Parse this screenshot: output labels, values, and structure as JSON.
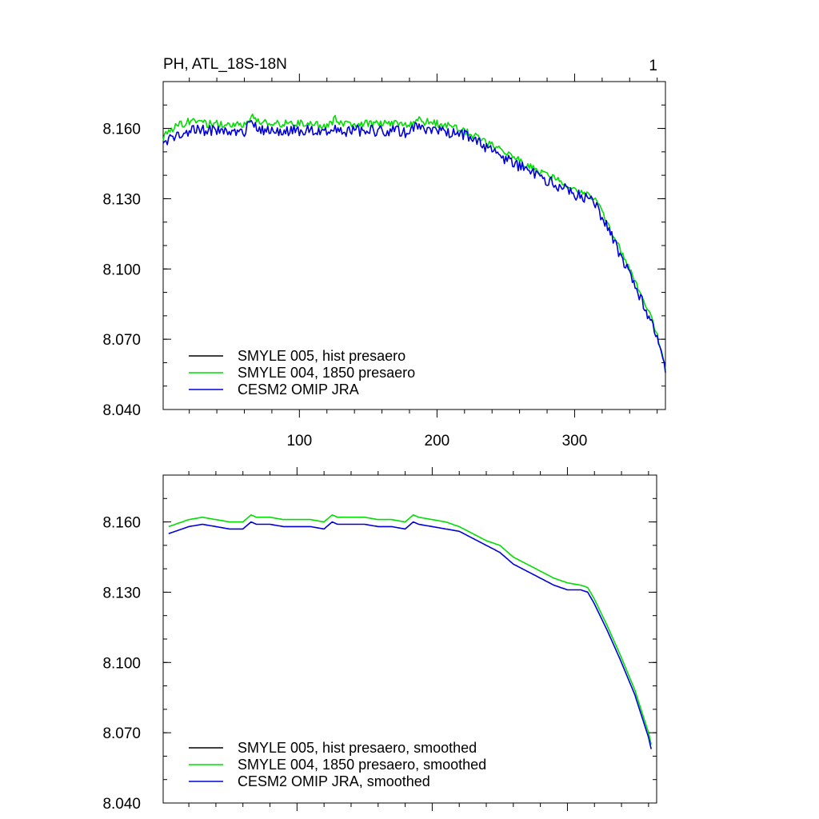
{
  "chart_data": [
    {
      "type": "line",
      "title_left": "PH, ATL_18S-18N",
      "title_right": "1",
      "xlim": [
        1,
        366
      ],
      "ylim": [
        8.04,
        8.18
      ],
      "xticks": [
        100,
        200,
        300
      ],
      "yticks": [
        8.04,
        8.07,
        8.1,
        8.13,
        8.16
      ],
      "ytick_labels": [
        "8.040",
        "8.070",
        "8.100",
        "8.130",
        "8.160"
      ],
      "xtick_labels": [
        "100",
        "200",
        "300"
      ],
      "legend_position": "bottom-left",
      "series": [
        {
          "name": "SMYLE 005, hist presaero",
          "color": "#000000",
          "hidden_under": "SMYLE 004, 1850 presaero"
        },
        {
          "name": "SMYLE 004, 1850 presaero",
          "color": "#00dd00",
          "x": [
            1,
            10,
            20,
            30,
            40,
            50,
            60,
            66,
            70,
            80,
            90,
            100,
            110,
            120,
            126,
            130,
            140,
            150,
            160,
            170,
            180,
            186,
            190,
            200,
            210,
            220,
            230,
            240,
            250,
            260,
            270,
            280,
            290,
            300,
            310,
            315,
            320,
            330,
            340,
            350,
            360,
            366
          ],
          "values": [
            8.156,
            8.161,
            8.163,
            8.162,
            8.162,
            8.162,
            8.162,
            8.165,
            8.163,
            8.162,
            8.162,
            8.162,
            8.162,
            8.161,
            8.164,
            8.162,
            8.162,
            8.162,
            8.162,
            8.162,
            8.161,
            8.165,
            8.163,
            8.162,
            8.161,
            8.159,
            8.156,
            8.153,
            8.15,
            8.146,
            8.143,
            8.14,
            8.137,
            8.134,
            8.132,
            8.13,
            8.124,
            8.112,
            8.1,
            8.087,
            8.072,
            8.057
          ]
        },
        {
          "name": "CESM2 OMIP JRA",
          "color": "#0000dd",
          "x": [
            1,
            10,
            20,
            30,
            40,
            50,
            60,
            66,
            70,
            80,
            90,
            100,
            110,
            120,
            126,
            130,
            140,
            150,
            160,
            170,
            180,
            186,
            190,
            200,
            210,
            220,
            230,
            240,
            250,
            260,
            270,
            280,
            290,
            300,
            310,
            315,
            320,
            330,
            340,
            350,
            360,
            366
          ],
          "values": [
            8.153,
            8.157,
            8.159,
            8.159,
            8.159,
            8.159,
            8.159,
            8.162,
            8.16,
            8.159,
            8.159,
            8.159,
            8.159,
            8.158,
            8.161,
            8.159,
            8.159,
            8.159,
            8.159,
            8.159,
            8.158,
            8.162,
            8.16,
            8.159,
            8.158,
            8.157,
            8.154,
            8.15,
            8.147,
            8.144,
            8.141,
            8.138,
            8.135,
            8.132,
            8.13,
            8.128,
            8.122,
            8.11,
            8.098,
            8.085,
            8.07,
            8.056
          ]
        }
      ]
    },
    {
      "type": "line",
      "xlim": [
        1,
        366
      ],
      "ylim": [
        8.04,
        8.18
      ],
      "xticks": [
        100,
        200,
        300
      ],
      "yticks": [
        8.04,
        8.07,
        8.1,
        8.13,
        8.16
      ],
      "ytick_labels": [
        "8.040",
        "8.070",
        "8.100",
        "8.130",
        "8.160"
      ],
      "legend_position": "bottom-left",
      "series": [
        {
          "name": "SMYLE 005, hist presaero, smoothed",
          "color": "#000000",
          "hidden_under": "SMYLE 004, 1850 presaero, smoothed"
        },
        {
          "name": "SMYLE 004, 1850 presaero, smoothed",
          "color": "#00dd00",
          "x": [
            5,
            10,
            20,
            30,
            40,
            50,
            60,
            66,
            70,
            80,
            90,
            100,
            110,
            120,
            126,
            130,
            140,
            150,
            160,
            170,
            180,
            186,
            190,
            200,
            210,
            220,
            230,
            240,
            250,
            260,
            270,
            280,
            290,
            300,
            310,
            315,
            320,
            330,
            340,
            350,
            360,
            362
          ],
          "values": [
            8.158,
            8.159,
            8.161,
            8.162,
            8.161,
            8.16,
            8.16,
            8.163,
            8.162,
            8.162,
            8.161,
            8.161,
            8.161,
            8.16,
            8.163,
            8.162,
            8.162,
            8.162,
            8.161,
            8.161,
            8.16,
            8.163,
            8.162,
            8.161,
            8.16,
            8.158,
            8.155,
            8.152,
            8.15,
            8.145,
            8.142,
            8.139,
            8.136,
            8.134,
            8.133,
            8.132,
            8.127,
            8.115,
            8.102,
            8.088,
            8.07,
            8.065
          ]
        },
        {
          "name": "CESM2 OMIP JRA, smoothed",
          "color": "#0000dd",
          "x": [
            5,
            10,
            20,
            30,
            40,
            50,
            60,
            66,
            70,
            80,
            90,
            100,
            110,
            120,
            126,
            130,
            140,
            150,
            160,
            170,
            180,
            186,
            190,
            200,
            210,
            220,
            230,
            240,
            250,
            260,
            270,
            280,
            290,
            300,
            310,
            315,
            320,
            330,
            340,
            350,
            360,
            362
          ],
          "values": [
            8.155,
            8.156,
            8.158,
            8.159,
            8.158,
            8.157,
            8.157,
            8.16,
            8.159,
            8.159,
            8.158,
            8.158,
            8.158,
            8.157,
            8.16,
            8.159,
            8.159,
            8.159,
            8.158,
            8.158,
            8.157,
            8.16,
            8.159,
            8.158,
            8.157,
            8.156,
            8.153,
            8.15,
            8.147,
            8.142,
            8.139,
            8.136,
            8.133,
            8.131,
            8.131,
            8.13,
            8.125,
            8.113,
            8.1,
            8.086,
            8.068,
            8.063
          ]
        }
      ]
    }
  ]
}
